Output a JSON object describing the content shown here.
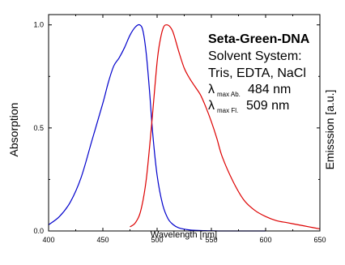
{
  "chart_data": {
    "type": "line",
    "title": "",
    "xlabel": "Wavelength [nm]",
    "ylabel_left": "Absorption",
    "ylabel_right": "Emisssion [a.u.]",
    "xlim": [
      400,
      650
    ],
    "ylim": [
      0,
      1.05
    ],
    "x_ticks": [
      400,
      450,
      500,
      550,
      600,
      650
    ],
    "y_ticks": [
      0.0,
      0.5,
      1.0
    ],
    "x_tick_labels": [
      "400",
      "450",
      "500",
      "550",
      "600",
      "650"
    ],
    "y_tick_labels": [
      "0.0",
      "0.5",
      "1.0"
    ],
    "grid": false,
    "legend": "none",
    "annotation": {
      "title": "Seta-Green-DNA",
      "line1": "Solvent System:",
      "line2": "Tris, EDTA, NaCl",
      "abs_symbol": "λ",
      "abs_sub": "max Ab.",
      "abs_value": "484 nm",
      "fl_symbol": "λ",
      "fl_sub": "max Fl.",
      "fl_value": "509 nm"
    },
    "series": [
      {
        "color": "#0000cc",
        "x": [
          400,
          410,
          420,
          430,
          440,
          450,
          455,
          460,
          465,
          470,
          475,
          480,
          484,
          487,
          490,
          493,
          496,
          500,
          505,
          510,
          515,
          520,
          530,
          540,
          550,
          560,
          580,
          600
        ],
        "y": [
          0.03,
          0.07,
          0.14,
          0.26,
          0.44,
          0.62,
          0.72,
          0.8,
          0.84,
          0.89,
          0.95,
          0.99,
          1.0,
          0.97,
          0.86,
          0.68,
          0.47,
          0.27,
          0.13,
          0.06,
          0.03,
          0.015,
          0.005,
          0.002,
          0.001,
          0.0,
          0.0,
          0.0
        ]
      },
      {
        "color": "#dd0000",
        "x": [
          475,
          480,
          485,
          490,
          495,
          500,
          503,
          506,
          509,
          512,
          515,
          520,
          525,
          530,
          535,
          540,
          545,
          550,
          555,
          560,
          570,
          580,
          590,
          600,
          610,
          620,
          630,
          640,
          650
        ],
        "y": [
          0.02,
          0.04,
          0.1,
          0.25,
          0.52,
          0.82,
          0.93,
          0.99,
          1.0,
          0.99,
          0.96,
          0.87,
          0.79,
          0.74,
          0.7,
          0.66,
          0.6,
          0.53,
          0.45,
          0.36,
          0.24,
          0.15,
          0.1,
          0.07,
          0.05,
          0.04,
          0.03,
          0.02,
          0.01
        ]
      }
    ]
  }
}
